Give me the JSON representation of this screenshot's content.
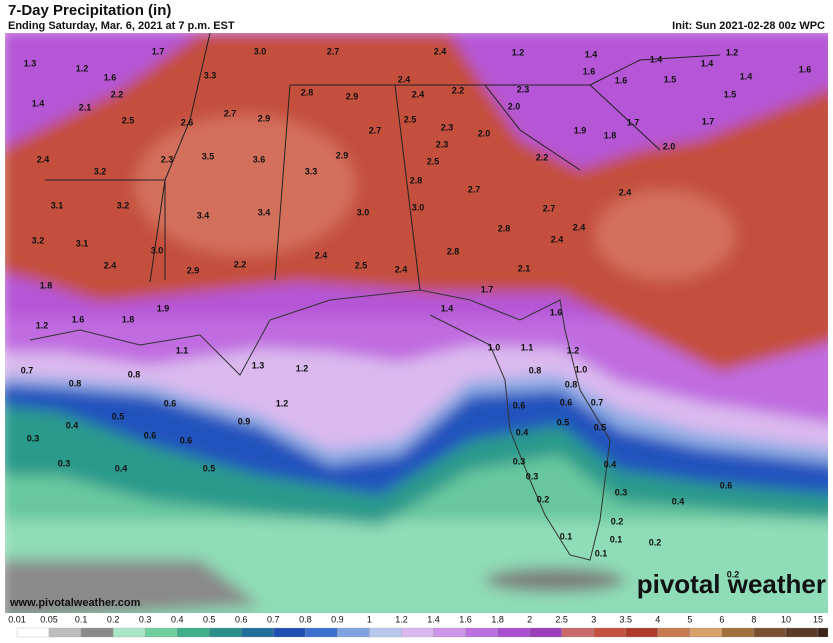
{
  "header": {
    "title": "7-Day Precipitation (in)",
    "subtitle": "Ending Saturday, Mar. 6, 2021 at 7 p.m. EST",
    "init": "Init: Sun 2021-02-28 00z WPC"
  },
  "map": {
    "labels": [
      "1.3",
      "1.7",
      "3.0",
      "2.7",
      "2.4",
      "1.2",
      "1.4",
      "1.4",
      "1.2",
      "1.6",
      "1.2",
      "1.6",
      "3.3",
      "2.4",
      "2.2",
      "2.3",
      "1.6",
      "1.6",
      "1.5",
      "1.4",
      "1.4",
      "1.4",
      "2.1",
      "2.2",
      "2.8",
      "2.9",
      "2.4",
      "2.0",
      "1.5",
      "2.5",
      "2.6",
      "2.7",
      "2.9",
      "2.5",
      "2.3",
      "2.0",
      "1.9",
      "1.8",
      "1.7",
      "1.7",
      "2.4",
      "3.2",
      "2.3",
      "3.5",
      "3.6",
      "2.7",
      "2.9",
      "2.3",
      "2.5",
      "2.2",
      "2.0",
      "3.1",
      "3.2",
      "3.3",
      "2.8",
      "2.7",
      "2.4",
      "3.4",
      "3.4",
      "3.0",
      "3.0",
      "2.7",
      "2.8",
      "2.4",
      "3.2",
      "3.1",
      "3.0",
      "2.4",
      "2.4",
      "2.8",
      "2.4",
      "2.9",
      "2.2",
      "2.5",
      "2.4",
      "2.1",
      "1.8",
      "1.9",
      "1.7",
      "1.6",
      "1.4",
      "1.2",
      "1.6",
      "1.8",
      "1.1",
      "1.0",
      "1.1",
      "1.2",
      "0.7",
      "0.8",
      "0.8",
      "1.3",
      "1.2",
      "0.8",
      "1.0",
      "0.8",
      "0.6",
      "1.2",
      "0.6",
      "0.6",
      "0.7",
      "0.5",
      "0.4",
      "0.9",
      "0.5",
      "0.5",
      "0.4",
      "0.3",
      "0.6",
      "0.6",
      "0.3",
      "0.4",
      "0.5",
      "0.3",
      "0.4",
      "0.3",
      "0.6",
      "0.3",
      "0.4",
      "0.2",
      "0.2",
      "0.1",
      "0.1",
      "0.2",
      "0.1",
      "0.2"
    ]
  },
  "footer": {
    "url": "www.pivotalweather.com",
    "logo": "pivotal weather"
  },
  "colorbar": {
    "ticks": [
      0.01,
      0.05,
      0.1,
      0.2,
      0.3,
      0.4,
      0.5,
      0.6,
      0.7,
      0.8,
      0.9,
      1,
      1.2,
      1.4,
      1.6,
      1.8,
      2,
      2.5,
      3,
      3.5,
      4,
      5,
      6,
      8,
      10,
      15
    ],
    "colors": [
      "#ffffff",
      "#bdbdbd",
      "#8a8a8a",
      "#a8e6c6",
      "#6fcf9f",
      "#3fae8a",
      "#2a8f88",
      "#1f6f9a",
      "#1f4fb0",
      "#3a6fd0",
      "#7fa3e0",
      "#b9c9ee",
      "#d9b8f0",
      "#cc95ea",
      "#bb6fe0",
      "#a94fd0",
      "#9a3fb8",
      "#c86a6a",
      "#c4503e",
      "#b03a2a",
      "#c77a50",
      "#d9a06a",
      "#a0703a",
      "#7a5030",
      "#5a3a28",
      "#3a2418"
    ]
  }
}
